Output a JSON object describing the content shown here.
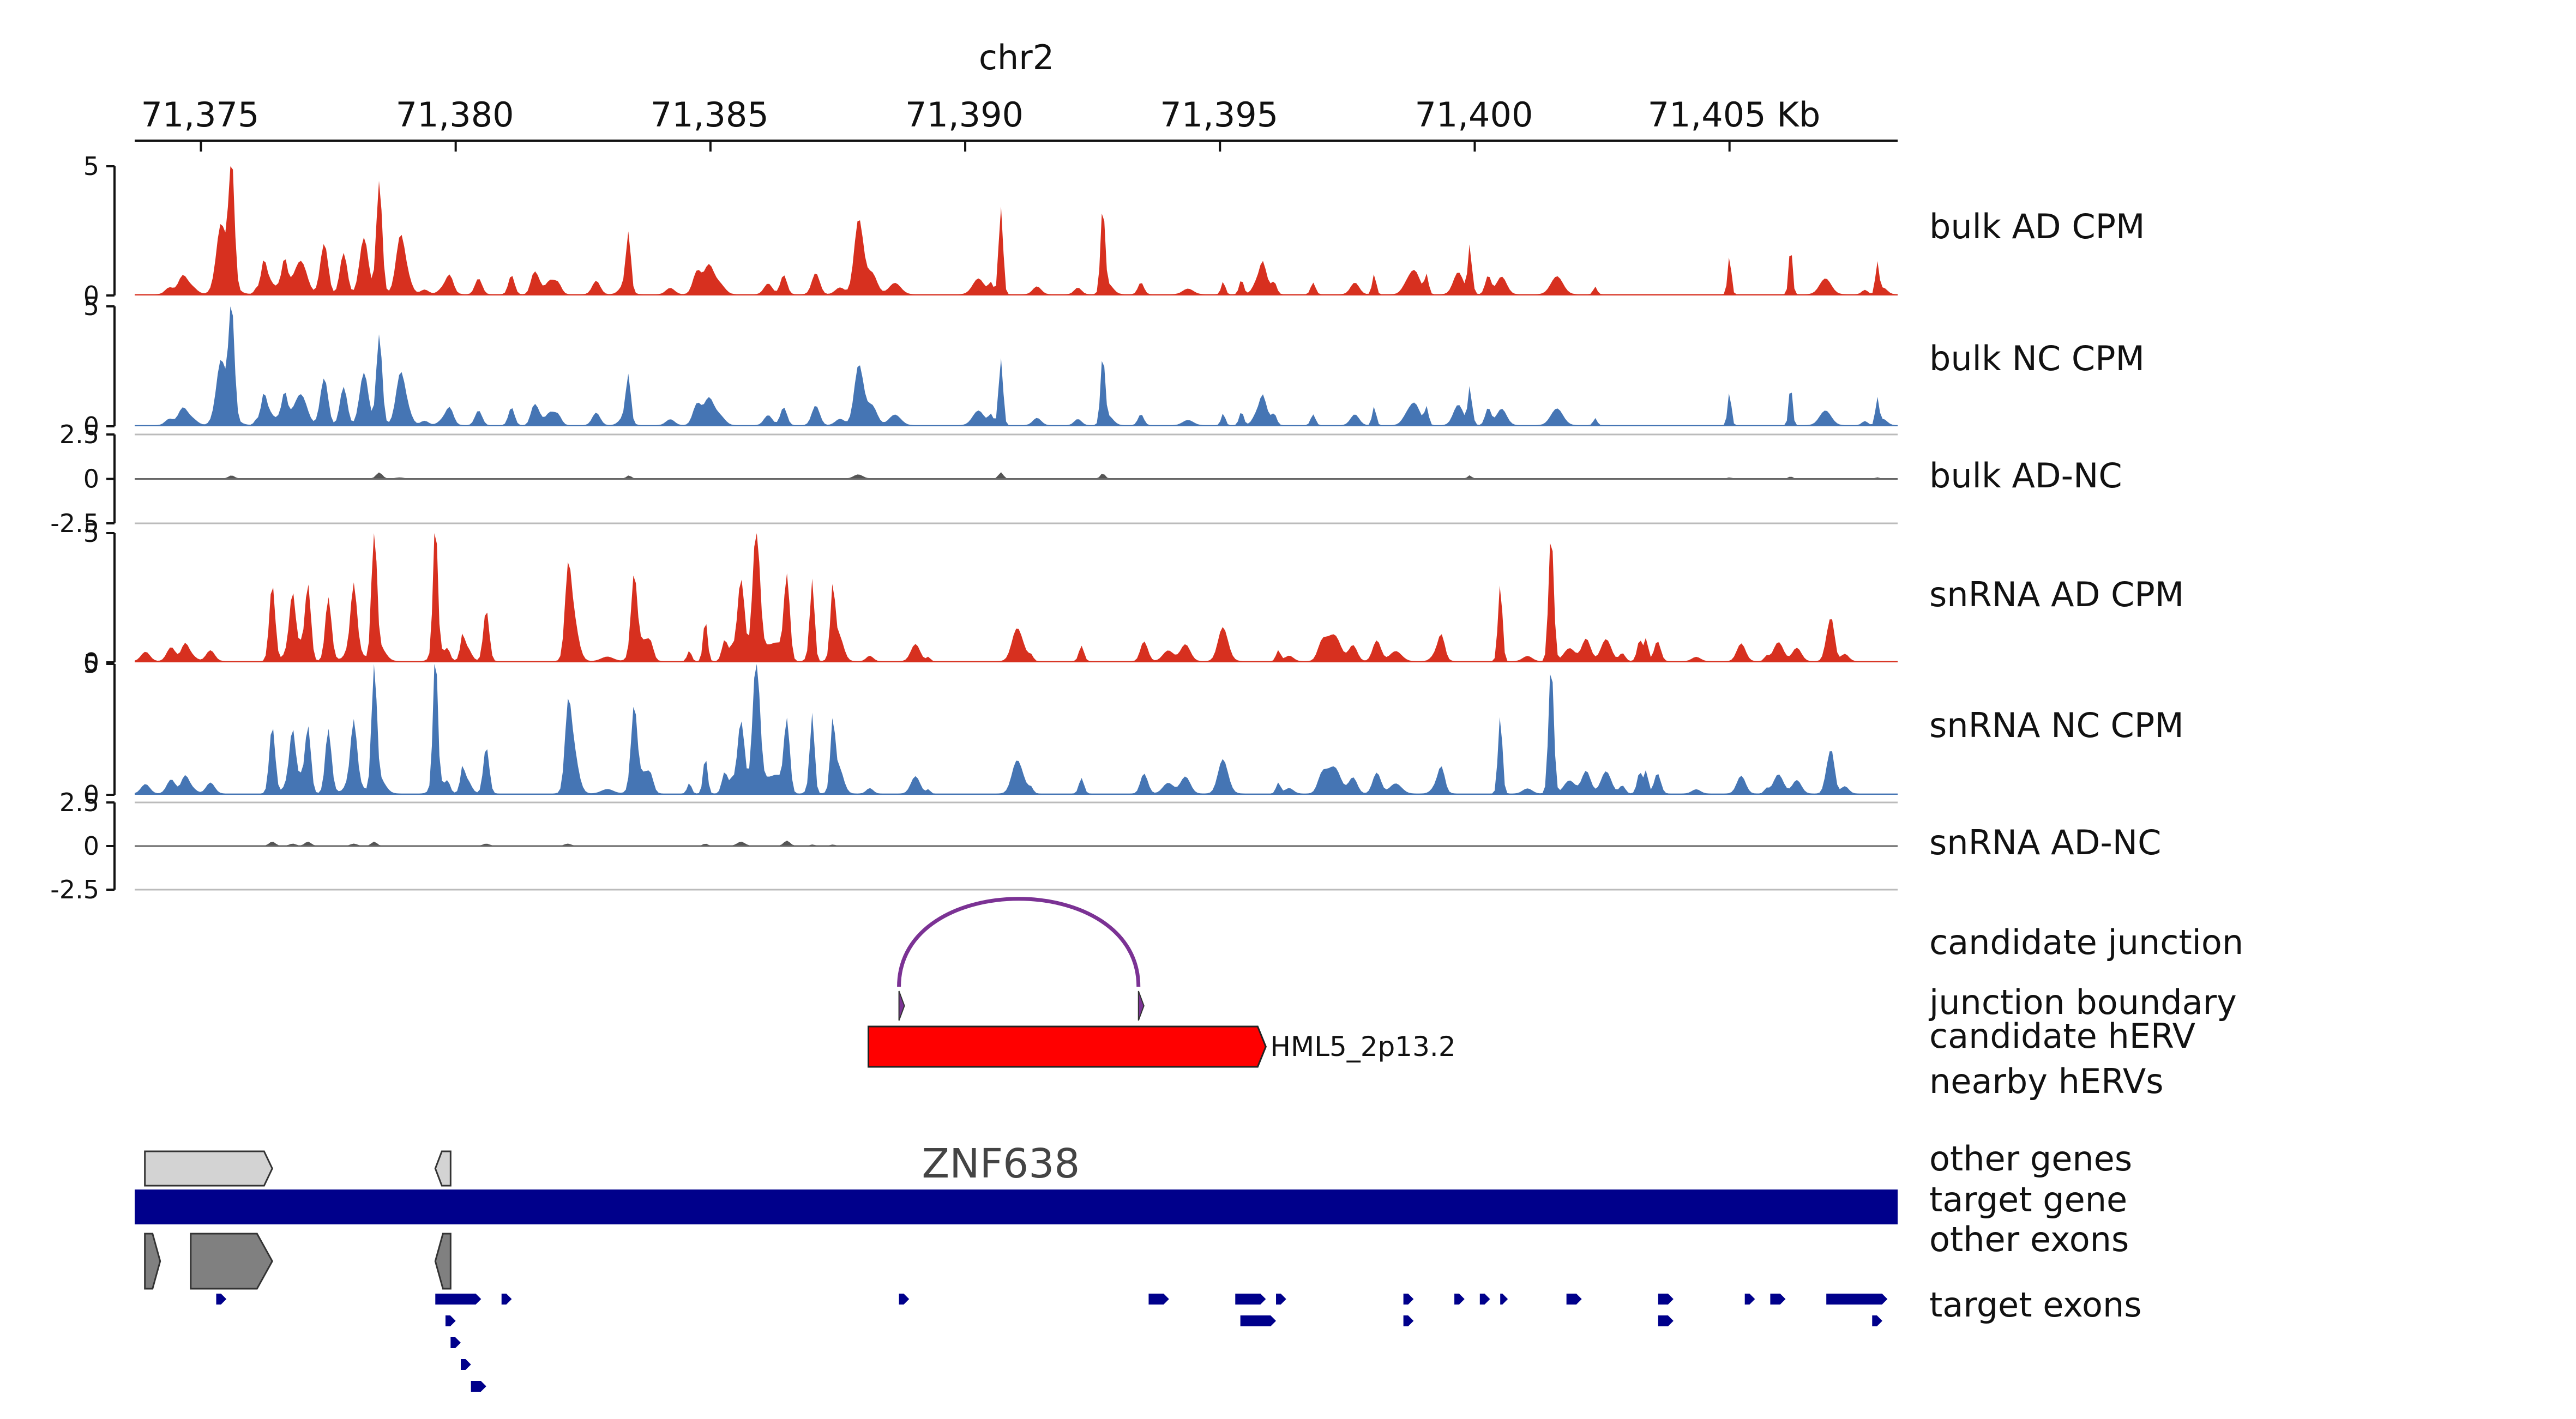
{
  "header": {
    "chromosome": "chr2",
    "ticks": [
      "71,375",
      "71,380",
      "71,385",
      "71,390",
      "71,395",
      "71,400",
      "71,405 Kb"
    ]
  },
  "region_kb": [
    71373.7,
    71408.3
  ],
  "colors": {
    "ad": "#d7301f",
    "nc": "#4575b4",
    "diff": "#555555",
    "junction": "#7b3294",
    "herv": "#ff0000",
    "target_gene": "#00008b",
    "other_gene": "#d3d3d3",
    "other_exon": "#808080"
  },
  "tracks": [
    {
      "id": "bulk-ad-cpm",
      "label": "bulk AD CPM",
      "type": "area",
      "color": "ad",
      "ymin": 0,
      "ymax": 5,
      "tick_labels": [
        "5",
        "0"
      ],
      "seed": 11,
      "peaks": [
        [
          71375.6,
          5.1,
          0.08
        ],
        [
          71375.4,
          2.0,
          0.12
        ],
        [
          71378.5,
          4.4,
          0.08
        ],
        [
          71378.2,
          2.2,
          0.12
        ],
        [
          71377.8,
          1.6,
          0.1
        ],
        [
          71377.4,
          1.5,
          0.1
        ],
        [
          71390.7,
          3.4,
          0.06
        ],
        [
          71392.7,
          3.3,
          0.06
        ],
        [
          71387.9,
          2.4,
          0.12
        ],
        [
          71399.9,
          1.8,
          0.05
        ],
        [
          71405.0,
          1.5,
          0.05
        ],
        [
          71406.2,
          1.9,
          0.05
        ],
        [
          71407.9,
          1.2,
          0.05
        ],
        [
          71383.4,
          1.3,
          0.06
        ],
        [
          71378.9,
          1.2,
          0.1
        ]
      ]
    },
    {
      "id": "bulk-nc-cpm",
      "label": "bulk NC CPM",
      "type": "area",
      "color": "nc",
      "ymin": 0,
      "ymax": 5,
      "tick_labels": [
        "5",
        "0"
      ],
      "seed": 11,
      "peaks": [
        [
          71375.6,
          4.8,
          0.08
        ],
        [
          71375.4,
          2.0,
          0.12
        ],
        [
          71378.5,
          3.8,
          0.08
        ],
        [
          71378.2,
          2.2,
          0.12
        ],
        [
          71377.8,
          1.6,
          0.1
        ],
        [
          71377.4,
          1.5,
          0.1
        ],
        [
          71390.7,
          2.8,
          0.06
        ],
        [
          71392.7,
          2.8,
          0.06
        ],
        [
          71387.9,
          2.0,
          0.12
        ],
        [
          71399.9,
          1.5,
          0.05
        ],
        [
          71405.0,
          1.4,
          0.05
        ],
        [
          71406.2,
          1.7,
          0.05
        ],
        [
          71407.9,
          1.1,
          0.05
        ],
        [
          71383.4,
          1.0,
          0.06
        ],
        [
          71378.9,
          1.1,
          0.1
        ]
      ]
    },
    {
      "id": "bulk-ad-nc",
      "label": "bulk AD-NC",
      "type": "diff",
      "color": "diff",
      "ymin": -2.5,
      "ymax": 2.5,
      "tick_labels": [
        "2.5",
        "0",
        "-2.5"
      ],
      "seed": 11
    },
    {
      "id": "snrna-ad-cpm",
      "label": "snRNA AD CPM",
      "type": "area",
      "color": "ad",
      "ymin": 0,
      "ymax": 5,
      "tick_labels": [
        "5",
        "0"
      ],
      "seed": 29,
      "peaks": [
        [
          71385.9,
          5.2,
          0.1
        ],
        [
          71385.6,
          3.2,
          0.1
        ],
        [
          71386.5,
          3.3,
          0.08
        ],
        [
          71401.5,
          5.0,
          0.07
        ],
        [
          71400.5,
          3.0,
          0.06
        ],
        [
          71378.4,
          5.0,
          0.07
        ],
        [
          71379.6,
          5.0,
          0.06
        ],
        [
          71377.1,
          3.0,
          0.08
        ],
        [
          71376.4,
          3.0,
          0.08
        ],
        [
          71383.5,
          2.8,
          0.08
        ],
        [
          71380.6,
          2.0,
          0.08
        ],
        [
          71382.2,
          2.4,
          0.08
        ],
        [
          71387.0,
          2.7,
          0.06
        ],
        [
          71387.4,
          2.3,
          0.06
        ],
        [
          71377.5,
          2.2,
          0.08
        ],
        [
          71384.9,
          1.6,
          0.06
        ],
        [
          71376.8,
          2.0,
          0.08
        ],
        [
          71378.0,
          2.2,
          0.08
        ]
      ]
    },
    {
      "id": "snrna-nc-cpm",
      "label": "snRNA NC CPM",
      "type": "area",
      "color": "nc",
      "ymin": 0,
      "ymax": 5,
      "tick_labels": [
        "5",
        "0"
      ],
      "seed": 29,
      "peaks": [
        [
          71385.9,
          5.2,
          0.1
        ],
        [
          71385.6,
          2.8,
          0.1
        ],
        [
          71386.5,
          2.8,
          0.08
        ],
        [
          71401.5,
          5.0,
          0.07
        ],
        [
          71400.5,
          3.0,
          0.06
        ],
        [
          71378.4,
          4.6,
          0.07
        ],
        [
          71379.6,
          5.0,
          0.06
        ],
        [
          71377.1,
          2.6,
          0.08
        ],
        [
          71376.4,
          2.6,
          0.08
        ],
        [
          71383.5,
          2.8,
          0.08
        ],
        [
          71380.6,
          1.8,
          0.08
        ],
        [
          71382.2,
          2.2,
          0.08
        ],
        [
          71387.0,
          2.6,
          0.06
        ],
        [
          71387.4,
          2.2,
          0.06
        ],
        [
          71377.5,
          2.2,
          0.08
        ],
        [
          71384.9,
          1.4,
          0.06
        ],
        [
          71376.8,
          1.8,
          0.08
        ],
        [
          71378.0,
          2.0,
          0.08
        ]
      ]
    },
    {
      "id": "snrna-ad-nc",
      "label": "snRNA AD-NC",
      "type": "diff",
      "color": "diff",
      "ymin": -2.5,
      "ymax": 2.5,
      "tick_labels": [
        "2.5",
        "0",
        "-2.5"
      ],
      "seed": 29
    },
    {
      "id": "candidate-junction",
      "label": "candidate junction",
      "type": "arc",
      "color": "junction",
      "start": 71388.7,
      "end": 71393.4
    },
    {
      "id": "junction-boundary",
      "label": "junction boundary",
      "type": "markers",
      "positions": [
        71388.7,
        71393.4
      ]
    },
    {
      "id": "candidate-herv",
      "label": "candidate hERV",
      "type": "feature",
      "name": "HML5_2p13.2",
      "start": 71388.1,
      "end": 71395.9
    },
    {
      "id": "nearby-hervs",
      "label": "nearby hERVs",
      "type": "empty"
    },
    {
      "id": "other-genes",
      "label": "other genes",
      "type": "genes",
      "genes": [
        {
          "start": 71373.9,
          "end": 71376.4,
          "strand": "+"
        },
        {
          "start": 71379.6,
          "end": 71379.9,
          "strand": "-"
        }
      ]
    },
    {
      "id": "target-gene",
      "label": "target gene",
      "type": "bar",
      "name": "ZNF638",
      "start": 71373.7,
      "end": 71408.3
    },
    {
      "id": "other-exons",
      "label": "other exons",
      "type": "exons",
      "exons": [
        {
          "start": 71373.9,
          "end": 71374.2,
          "strand": "+"
        },
        {
          "start": 71374.8,
          "end": 71376.4,
          "strand": "+"
        },
        {
          "start": 71379.6,
          "end": 71379.9,
          "strand": "-"
        }
      ]
    },
    {
      "id": "target-exons",
      "label": "target exons",
      "type": "target-exons",
      "rows": [
        [
          [
            71375.3,
            71375.5
          ],
          [
            71379.6,
            71380.5
          ],
          [
            71380.9,
            71381.1
          ],
          [
            71388.7,
            71388.9
          ],
          [
            71393.6,
            71394.0
          ],
          [
            71395.3,
            71395.9
          ],
          [
            71396.1,
            71396.3
          ],
          [
            71398.6,
            71398.8
          ],
          [
            71399.6,
            71399.8
          ],
          [
            71400.1,
            71400.3
          ],
          [
            71400.5,
            71400.6
          ],
          [
            71401.8,
            71402.1
          ],
          [
            71403.6,
            71403.9
          ],
          [
            71405.3,
            71405.5
          ],
          [
            71405.8,
            71406.1
          ],
          [
            71406.9,
            71408.1
          ]
        ],
        [
          [
            71379.8,
            71380.0
          ],
          [
            71395.4,
            71396.1
          ],
          [
            71398.6,
            71398.8
          ],
          [
            71403.6,
            71403.9
          ],
          [
            71407.8,
            71408.0
          ]
        ],
        [
          [
            71379.9,
            71380.1
          ]
        ],
        [
          [
            71380.1,
            71380.3
          ]
        ],
        [
          [
            71380.3,
            71380.6
          ]
        ]
      ]
    }
  ]
}
